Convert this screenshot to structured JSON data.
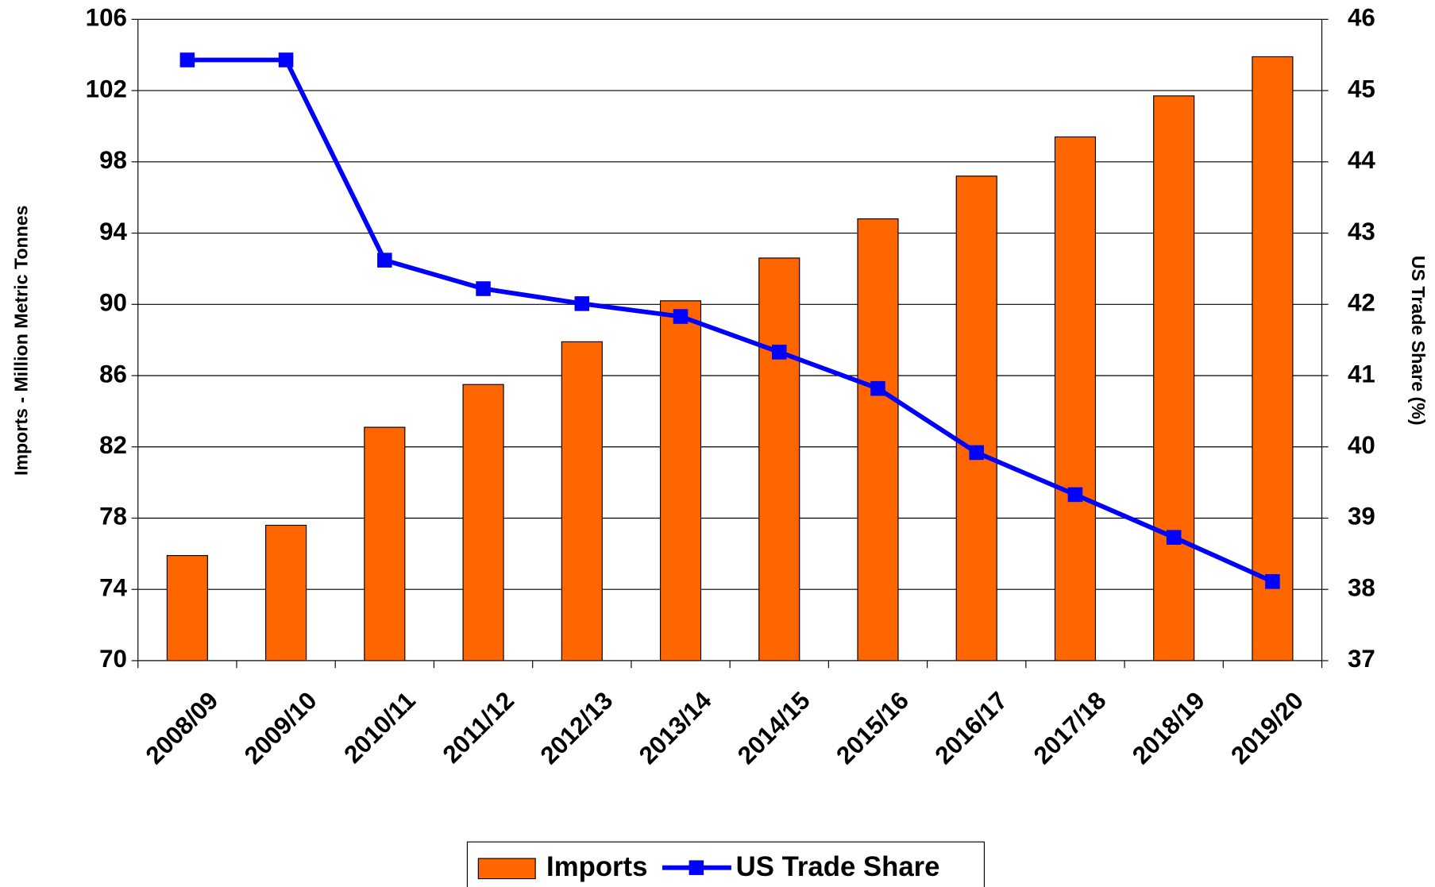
{
  "chart_data": {
    "type": "bar",
    "categories": [
      "2008/09",
      "2009/10",
      "2010/11",
      "2011/12",
      "2012/13",
      "2013/14",
      "2014/15",
      "2015/16",
      "2016/17",
      "2017/18",
      "2018/19",
      "2019/20"
    ],
    "series": [
      {
        "name": "Imports",
        "color": "#ff6600",
        "type": "bar",
        "values": [
          75.9,
          77.6,
          83.1,
          85.5,
          87.9,
          90.2,
          92.6,
          94.8,
          97.2,
          99.4,
          101.7,
          103.9
        ]
      },
      {
        "name": "US Trade Share",
        "color": "#0000ff",
        "type": "line",
        "axis": "y2",
        "values": [
          45.43,
          45.43,
          42.62,
          42.22,
          42.01,
          41.83,
          41.33,
          40.82,
          39.92,
          39.33,
          38.73,
          38.11
        ]
      }
    ],
    "ylabel": "Imports - Million Metric Tonnes",
    "y2label": "US Trade Share (%)",
    "ylim": [
      70,
      106
    ],
    "yticks": [
      70,
      74,
      78,
      82,
      86,
      90,
      94,
      98,
      102,
      106
    ],
    "y2lim": [
      37,
      46
    ],
    "y2ticks": [
      37,
      38,
      39,
      40,
      41,
      42,
      43,
      44,
      45,
      46
    ],
    "grid": true,
    "legend": "bottom"
  }
}
